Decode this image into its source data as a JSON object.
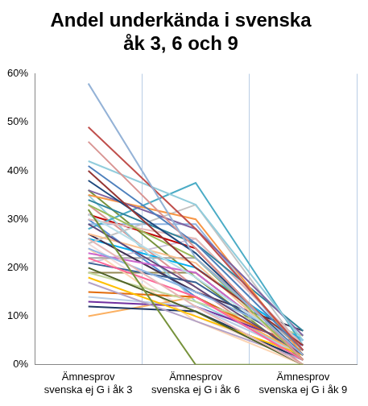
{
  "chart_data": {
    "type": "line",
    "title": [
      "Andel underkända i svenska",
      "åk 3, 6 och 9"
    ],
    "categories": [
      "Ämnesprov svenska ej G i åk 3",
      "Ämnesprov svenska ej G i åk 6",
      "Ämnesprov svenska ej G i åk 9"
    ],
    "ylim": [
      0,
      60
    ],
    "yticks": [
      {
        "value": 0,
        "label": "0%"
      },
      {
        "value": 10,
        "label": "10%"
      },
      {
        "value": 20,
        "label": "20%"
      },
      {
        "value": 30,
        "label": "30%"
      },
      {
        "value": 40,
        "label": "40%"
      },
      {
        "value": 50,
        "label": "50%"
      },
      {
        "value": 60,
        "label": "60%"
      }
    ],
    "grid": true,
    "series": [
      {
        "color": "#95b3d7",
        "values": [
          58,
          22,
          2
        ]
      },
      {
        "color": "#c0504d",
        "values": [
          49,
          28,
          3
        ]
      },
      {
        "color": "#d99694",
        "values": [
          46,
          24,
          1
        ]
      },
      {
        "color": "#92cddc",
        "values": [
          42,
          33,
          5
        ]
      },
      {
        "color": "#4f81bd",
        "values": [
          41,
          25,
          3
        ]
      },
      {
        "color": "#953735",
        "values": [
          40,
          20,
          4
        ]
      },
      {
        "color": "#1f497d",
        "values": [
          38,
          23,
          2
        ]
      },
      {
        "color": "#8064a2",
        "values": [
          36,
          28,
          6
        ]
      },
      {
        "color": "#f79646",
        "values": [
          35,
          30,
          2
        ]
      },
      {
        "color": "#31859c",
        "values": [
          34,
          25,
          7
        ]
      },
      {
        "color": "#9bbb59",
        "values": [
          33,
          22,
          1
        ]
      },
      {
        "color": "#77933c",
        "values": [
          32,
          0,
          0
        ]
      },
      {
        "color": "#b7dee8",
        "values": [
          31,
          18,
          3
        ]
      },
      {
        "color": "#e6b9b8",
        "values": [
          30,
          26,
          4
        ]
      },
      {
        "color": "#604a7b",
        "values": [
          29,
          16,
          2
        ]
      },
      {
        "color": "#4bacc6",
        "values": [
          28,
          37.5,
          4
        ]
      },
      {
        "color": "#fac090",
        "values": [
          27,
          21,
          1
        ]
      },
      {
        "color": "#e6b8b7",
        "values": [
          26,
          12,
          0
        ]
      },
      {
        "color": "#c4c4c4",
        "values": [
          25,
          33,
          3
        ]
      },
      {
        "color": "#8eb4e3",
        "values": [
          24,
          15,
          5
        ]
      },
      {
        "color": "#cc66cc",
        "values": [
          23,
          19,
          2
        ]
      },
      {
        "color": "#ff6699",
        "values": [
          22,
          14,
          1
        ]
      },
      {
        "color": "#376092",
        "values": [
          21,
          17,
          3
        ]
      },
      {
        "color": "#4f6228",
        "values": [
          20,
          11,
          0
        ]
      },
      {
        "color": "#c3d69b",
        "values": [
          19,
          13,
          6
        ]
      },
      {
        "color": "#ffc000",
        "values": [
          18,
          10,
          2
        ]
      },
      {
        "color": "#b3a2c7",
        "values": [
          17,
          9,
          1
        ]
      },
      {
        "color": "#e26b0a",
        "values": [
          15,
          14,
          3
        ]
      },
      {
        "color": "#b9cde5",
        "values": [
          14,
          12,
          2
        ]
      },
      {
        "color": "#7030a0",
        "values": [
          13,
          12,
          4
        ]
      },
      {
        "color": "#1f3864",
        "values": [
          12,
          11,
          1
        ]
      },
      {
        "color": "#fbb062",
        "values": [
          10,
          14,
          2
        ]
      },
      {
        "color": "#403152",
        "values": [
          27,
          15,
          7
        ]
      },
      {
        "color": "#93cddd",
        "values": [
          35,
          13,
          2
        ]
      },
      {
        "color": "#c00000",
        "values": [
          31,
          24,
          1
        ]
      },
      {
        "color": "#a6a6a6",
        "values": [
          22,
          22,
          3
        ]
      },
      {
        "color": "#00b0f0",
        "values": [
          26,
          20,
          5
        ]
      },
      {
        "color": "#fcd5b4",
        "values": [
          24,
          9,
          0
        ]
      },
      {
        "color": "#8db3e2",
        "values": [
          29,
          29,
          2
        ]
      },
      {
        "color": "#da9694",
        "values": [
          33,
          16,
          0
        ]
      },
      {
        "color": "#76923c",
        "values": [
          36,
          18,
          1
        ]
      },
      {
        "color": "#ccc1da",
        "values": [
          21,
          26,
          4
        ]
      },
      {
        "color": "#948a54",
        "values": [
          19,
          19,
          2
        ]
      },
      {
        "color": "#558ed5",
        "values": [
          30,
          14,
          3
        ]
      },
      {
        "color": "#f2dcdb",
        "values": [
          25,
          10,
          1
        ]
      }
    ]
  }
}
